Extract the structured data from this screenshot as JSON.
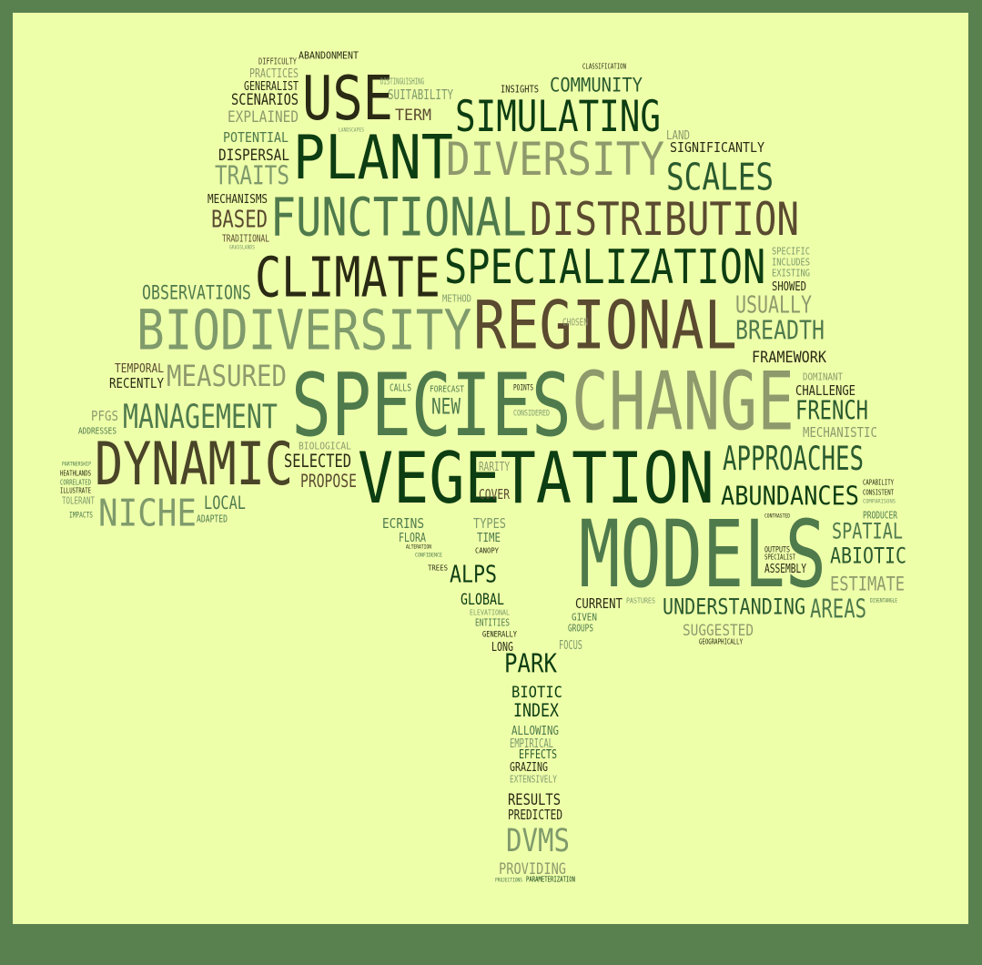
{
  "palette": {
    "frame": "#59814f",
    "background": "#eeffaa",
    "word_colors": [
      "#0d3d12",
      "#2a5a2e",
      "#4f7a4c",
      "#7f9a6b",
      "#8e9a6c",
      "#5a4a30",
      "#4a4428"
    ]
  },
  "words": [
    {
      "text": "SPECIES",
      "color": "#4f7a4c"
    },
    {
      "text": "MODELS",
      "color": "#4f7a4c"
    },
    {
      "text": "VEGETATION",
      "color": "#0d3d12"
    },
    {
      "text": "CHANGE",
      "color": "#8e9a6c"
    },
    {
      "text": "REGIONAL",
      "color": "#5a4a30"
    },
    {
      "text": "BIODIVERSITY",
      "color": "#7f9a6b"
    },
    {
      "text": "SPECIALIZATION",
      "color": "#0d3d12"
    },
    {
      "text": "DISTRIBUTION",
      "color": "#5a4a30"
    },
    {
      "text": "FUNCTIONAL",
      "color": "#4f7a4c"
    },
    {
      "text": "DIVERSITY",
      "color": "#8e9a6c"
    },
    {
      "text": "CLIMATE",
      "color": "#2a2a14"
    },
    {
      "text": "PLANT",
      "color": "#0d3d12"
    },
    {
      "text": "USE",
      "color": "#2a2a14"
    },
    {
      "text": "DYNAMIC",
      "color": "#4a4428"
    },
    {
      "text": "SIMULATING",
      "color": "#0d3d12"
    },
    {
      "text": "SCALES",
      "color": "#2a5a2e"
    },
    {
      "text": "MANAGEMENT",
      "color": "#4f7a4c"
    },
    {
      "text": "NICHE",
      "color": "#7f9a6b"
    },
    {
      "text": "APPROACHES",
      "color": "#2a5a2e"
    },
    {
      "text": "ABUNDANCES",
      "color": "#0d3d12"
    },
    {
      "text": "MEASURED",
      "color": "#8e9a6c"
    },
    {
      "text": "UNDERSTANDING",
      "color": "#2a5a2e"
    },
    {
      "text": "BREADTH",
      "color": "#4f7a4c"
    },
    {
      "text": "FRENCH",
      "color": "#2a5a2e"
    },
    {
      "text": "USUALLY",
      "color": "#8e9a6c"
    },
    {
      "text": "SPATIAL",
      "color": "#4f7a4c"
    },
    {
      "text": "ABIOTIC",
      "color": "#2a5a2e"
    },
    {
      "text": "ESTIMATE",
      "color": "#8e9a6c"
    },
    {
      "text": "AREAS",
      "color": "#4f7a4c"
    },
    {
      "text": "DVMS",
      "color": "#7f9a6b"
    },
    {
      "text": "PARK",
      "color": "#0d3d12"
    },
    {
      "text": "ALPS",
      "color": "#0d3d12"
    },
    {
      "text": "TRAITS",
      "color": "#7f9a6b"
    },
    {
      "text": "BASED",
      "color": "#5a4a30"
    },
    {
      "text": "OBSERVATIONS",
      "color": "#4f7a4c"
    },
    {
      "text": "COMMUNITY",
      "color": "#2a5a2e"
    },
    {
      "text": "NEW",
      "color": "#4f7a4c"
    },
    {
      "text": "LOCAL",
      "color": "#4f7a4c"
    },
    {
      "text": "SELECTED",
      "color": "#2a2a14"
    },
    {
      "text": "PROPOSE",
      "color": "#5a4a30"
    },
    {
      "text": "EXPLAINED",
      "color": "#8e9a6c"
    },
    {
      "text": "SCENARIOS",
      "color": "#2a2a14"
    },
    {
      "text": "SUGGESTED",
      "color": "#8e9a6c"
    },
    {
      "text": "PREDICTED",
      "color": "#2a2a14"
    },
    {
      "text": "PROVIDING",
      "color": "#8e9a6c"
    },
    {
      "text": "RESULTS",
      "color": "#2a2a14"
    },
    {
      "text": "INDEX",
      "color": "#0d3d12"
    },
    {
      "text": "BIOTIC",
      "color": "#0d3d12"
    },
    {
      "text": "CHALLENGE",
      "color": "#2a2a14"
    },
    {
      "text": "FRAMEWORK",
      "color": "#2a2a14"
    },
    {
      "text": "MECHANISTIC",
      "color": "#8e9a6c"
    },
    {
      "text": "POTENTIAL",
      "color": "#4f7a4c"
    },
    {
      "text": "DISPERSAL",
      "color": "#2a2a14"
    },
    {
      "text": "RECENTLY",
      "color": "#2a2a14"
    },
    {
      "text": "TEMPORAL",
      "color": "#5a4a30"
    },
    {
      "text": "CURRENT",
      "color": "#2a2a14"
    },
    {
      "text": "GLOBAL",
      "color": "#0d3d12"
    },
    {
      "text": "SIGNIFICANTLY",
      "color": "#2a2a14"
    },
    {
      "text": "TERM",
      "color": "#5a4a30"
    },
    {
      "text": "SUITABILITY",
      "color": "#7f9a6b"
    },
    {
      "text": "PFGS",
      "color": "#8e9a6c"
    },
    {
      "text": "ECRINS",
      "color": "#4f7a4c"
    },
    {
      "text": "TYPES",
      "color": "#7f9a6b"
    },
    {
      "text": "TIME",
      "color": "#4f7a4c"
    },
    {
      "text": "COVER",
      "color": "#5a4a30"
    },
    {
      "text": "FLORA",
      "color": "#4f7a4c"
    },
    {
      "text": "MECHANISMS",
      "color": "#2a2a14"
    },
    {
      "text": "GENERALIST",
      "color": "#2a2a14"
    },
    {
      "text": "PRACTICES",
      "color": "#8e9a6c"
    },
    {
      "text": "LAND",
      "color": "#8e9a6c"
    },
    {
      "text": "ALLOWING",
      "color": "#4f7a4c"
    },
    {
      "text": "EFFECTS",
      "color": "#2a5a2e"
    },
    {
      "text": "GRAZING",
      "color": "#2a2a14"
    },
    {
      "text": "EMPIRICAL",
      "color": "#7f9a6b"
    },
    {
      "text": "EXTENSIVELY",
      "color": "#7f9a6b"
    },
    {
      "text": "LONG",
      "color": "#2a2a14"
    },
    {
      "text": "INSIGHTS",
      "color": "#2a2a14"
    },
    {
      "text": "ASSEMBLY",
      "color": "#2a2a14"
    },
    {
      "text": "PRODUCER",
      "color": "#4f7a4c"
    },
    {
      "text": "SHOWED",
      "color": "#2a2a14"
    },
    {
      "text": "RARITY",
      "color": "#8e9a6c"
    },
    {
      "text": "TOLERANT",
      "color": "#7f9a6b"
    },
    {
      "text": "ADAPTED",
      "color": "#4f7a4c"
    },
    {
      "text": "ENTITIES",
      "color": "#4f7a4c"
    },
    {
      "text": "GIVEN",
      "color": "#4f7a4c"
    },
    {
      "text": "GROUPS",
      "color": "#4f7a4c"
    },
    {
      "text": "FOCUS",
      "color": "#7f9a6b"
    },
    {
      "text": "TRADITIONAL",
      "color": "#5a4a30"
    },
    {
      "text": "ABANDONMENT",
      "color": "#2a2a14"
    },
    {
      "text": "DIFFICULTY",
      "color": "#4a4428"
    },
    {
      "text": "DISTINGUISHING",
      "color": "#7f9a6b"
    },
    {
      "text": "CLASSIFICATION",
      "color": "#2a2a14"
    },
    {
      "text": "LANDSCAPES",
      "color": "#7f9a6b"
    },
    {
      "text": "GRASSLANDS",
      "color": "#7f9a6b"
    },
    {
      "text": "SPECIFIC",
      "color": "#7f9a6b"
    },
    {
      "text": "INCLUDES",
      "color": "#7f9a6b"
    },
    {
      "text": "EXISTING",
      "color": "#7f9a6b"
    },
    {
      "text": "METHOD",
      "color": "#7f9a6b"
    },
    {
      "text": "CHOSEN",
      "color": "#8e9a6c"
    },
    {
      "text": "DOMINANT",
      "color": "#8e9a6c"
    },
    {
      "text": "CALLS",
      "color": "#4f7a4c"
    },
    {
      "text": "FORECAST",
      "color": "#4f7a4c"
    },
    {
      "text": "POINTS",
      "color": "#2a2a14"
    },
    {
      "text": "CONSIDERED",
      "color": "#7f9a6b"
    },
    {
      "text": "BIOLOGICAL",
      "color": "#8e9a6c"
    },
    {
      "text": "ADDRESSES",
      "color": "#4f7a4c"
    },
    {
      "text": "PARTNERSHIP",
      "color": "#4f7a4c"
    },
    {
      "text": "HEATHLANDS",
      "color": "#2a2a14"
    },
    {
      "text": "CORRELATED",
      "color": "#4f7a4c"
    },
    {
      "text": "ILLUSTRATE",
      "color": "#2a2a14"
    },
    {
      "text": "IMPACTS",
      "color": "#4f7a4c"
    },
    {
      "text": "CAPABILITY",
      "color": "#2a2a14"
    },
    {
      "text": "CONSISTENT",
      "color": "#2a2a14"
    },
    {
      "text": "COMPARISONS",
      "color": "#7f9a6b"
    },
    {
      "text": "CONTRASTED",
      "color": "#2a2a14"
    },
    {
      "text": "OUTPUTS",
      "color": "#2a2a14"
    },
    {
      "text": "SPECIALIST",
      "color": "#2a2a14"
    },
    {
      "text": "DISENTANGLE",
      "color": "#4f7a4c"
    },
    {
      "text": "GEOGRAPHICALLY",
      "color": "#2a2a14"
    },
    {
      "text": "PASTURES",
      "color": "#7f9a6b"
    },
    {
      "text": "ELEVATIONAL",
      "color": "#7f9a6b"
    },
    {
      "text": "GENERALLY",
      "color": "#2a2a14"
    },
    {
      "text": "ALTERATION",
      "color": "#2a2a14"
    },
    {
      "text": "CONFIDENCE",
      "color": "#4f7a4c"
    },
    {
      "text": "TREES",
      "color": "#2a2a14"
    },
    {
      "text": "CANOPY",
      "color": "#2a2a14"
    },
    {
      "text": "PROJECTIONS",
      "color": "#4f7a4c"
    },
    {
      "text": "PARAMETERIZATION",
      "color": "#0d3d12"
    }
  ]
}
